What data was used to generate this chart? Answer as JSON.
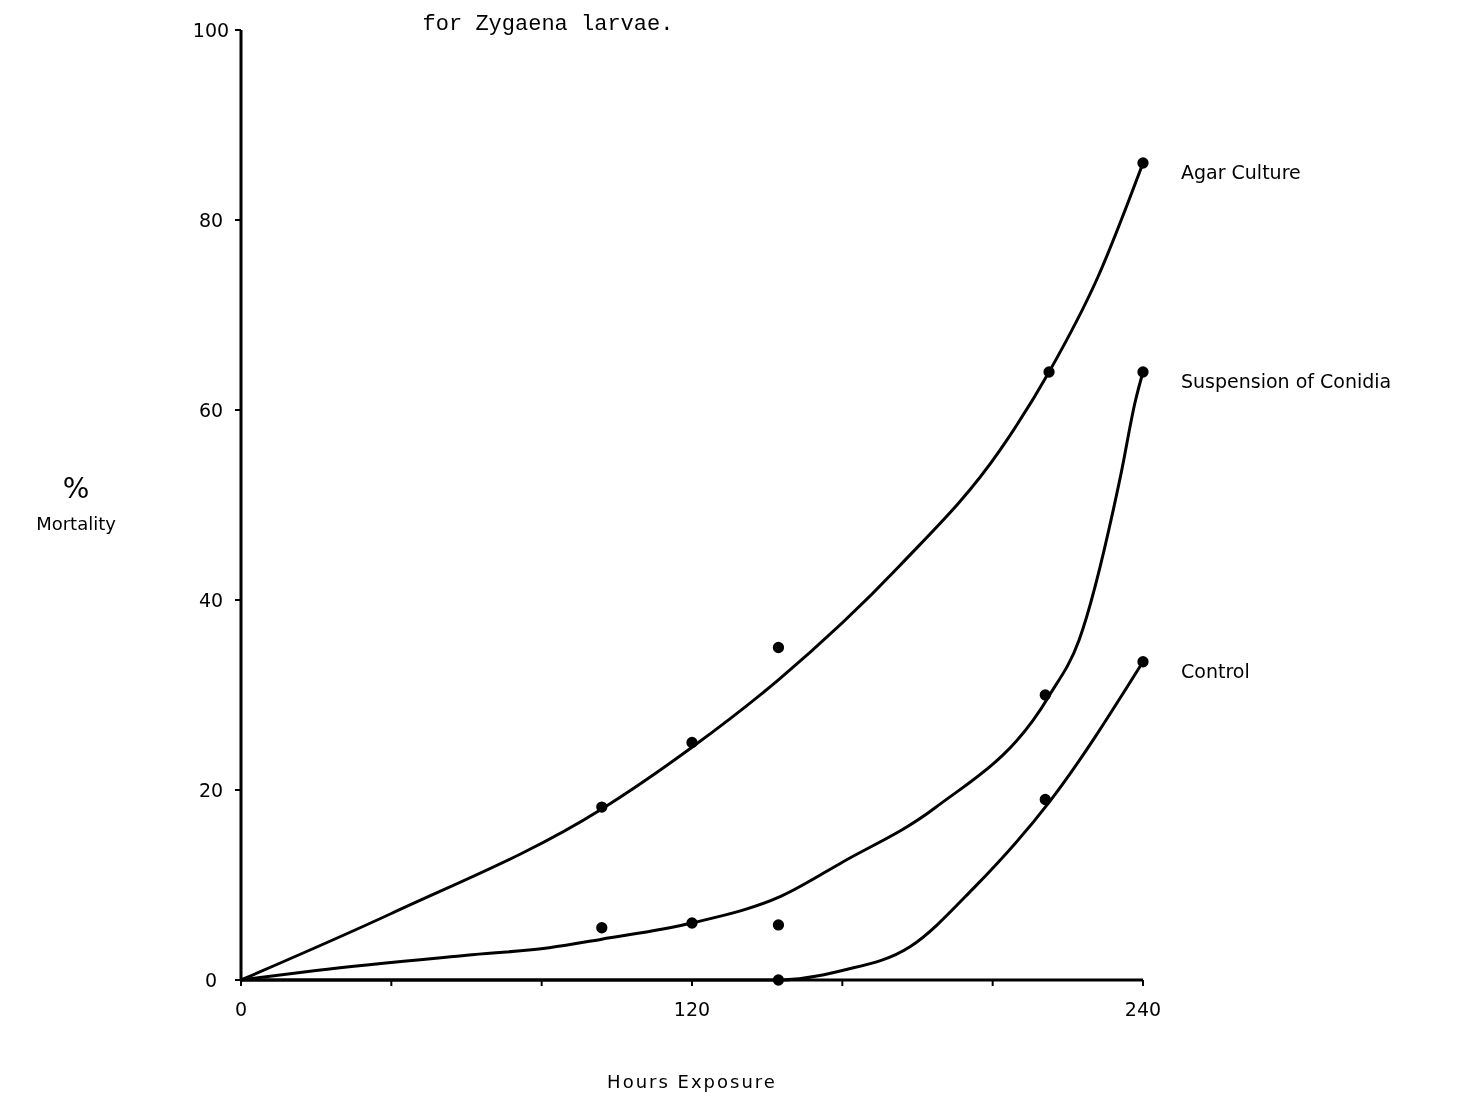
{
  "chart_data": {
    "type": "line",
    "title": "for Zygaena larvae.",
    "xlabel": "Hours  Exposure",
    "ylabel": "% Mortality",
    "xlim": [
      0,
      240
    ],
    "ylim": [
      0,
      100
    ],
    "xticks": [
      0,
      {
        "value": 40,
        "label": null
      },
      {
        "value": 80,
        "label": null
      },
      120,
      {
        "value": 160,
        "label": null
      },
      {
        "value": 200,
        "label": null
      },
      240
    ],
    "yticks": [
      0,
      20,
      40,
      60,
      80,
      100
    ],
    "grid": false,
    "line_style": "solid",
    "marker": "none",
    "series": [
      {
        "name": "Agar Culture",
        "color": "#000000",
        "x": [
          0,
          40,
          96,
          120,
          143,
          175,
          202,
          215,
          228,
          240
        ],
        "values": [
          0,
          7,
          18,
          24.5,
          31.6,
          43.5,
          55.8,
          64,
          74,
          86
        ]
      },
      {
        "name": "Suspension of Conidia",
        "color": "#000000",
        "x": [
          0,
          20,
          60,
          82,
          96,
          120,
          143.6,
          160,
          184.6,
          215,
          223,
          234,
          238,
          240
        ],
        "values": [
          0,
          1,
          2.6,
          3.4,
          4.3,
          6,
          8.8,
          12.4,
          18.1,
          29.9,
          35.8,
          53,
          61,
          64
        ]
      },
      {
        "name": "Control",
        "color": "#000000",
        "x": [
          0,
          143,
          160,
          178,
          195,
          215,
          240
        ],
        "values": [
          0,
          0,
          1,
          3.5,
          9.7,
          18.7,
          33.5
        ]
      },
      {
        "type": "scatter",
        "marker": "circle",
        "color": "#000000",
        "x": [
          96,
          120,
          143,
          215,
          240
        ],
        "values": [
          18.2,
          25,
          35,
          64,
          86
        ]
      },
      {
        "type": "scatter",
        "marker": "circle",
        "color": "#000000",
        "x": [
          96,
          120,
          143,
          214,
          240
        ],
        "values": [
          5.5,
          6,
          5.8,
          30,
          64
        ]
      },
      {
        "type": "scatter",
        "marker": "circle",
        "color": "#000000",
        "x": [
          143,
          214,
          240
        ],
        "values": [
          0,
          19,
          33.5
        ]
      }
    ]
  }
}
